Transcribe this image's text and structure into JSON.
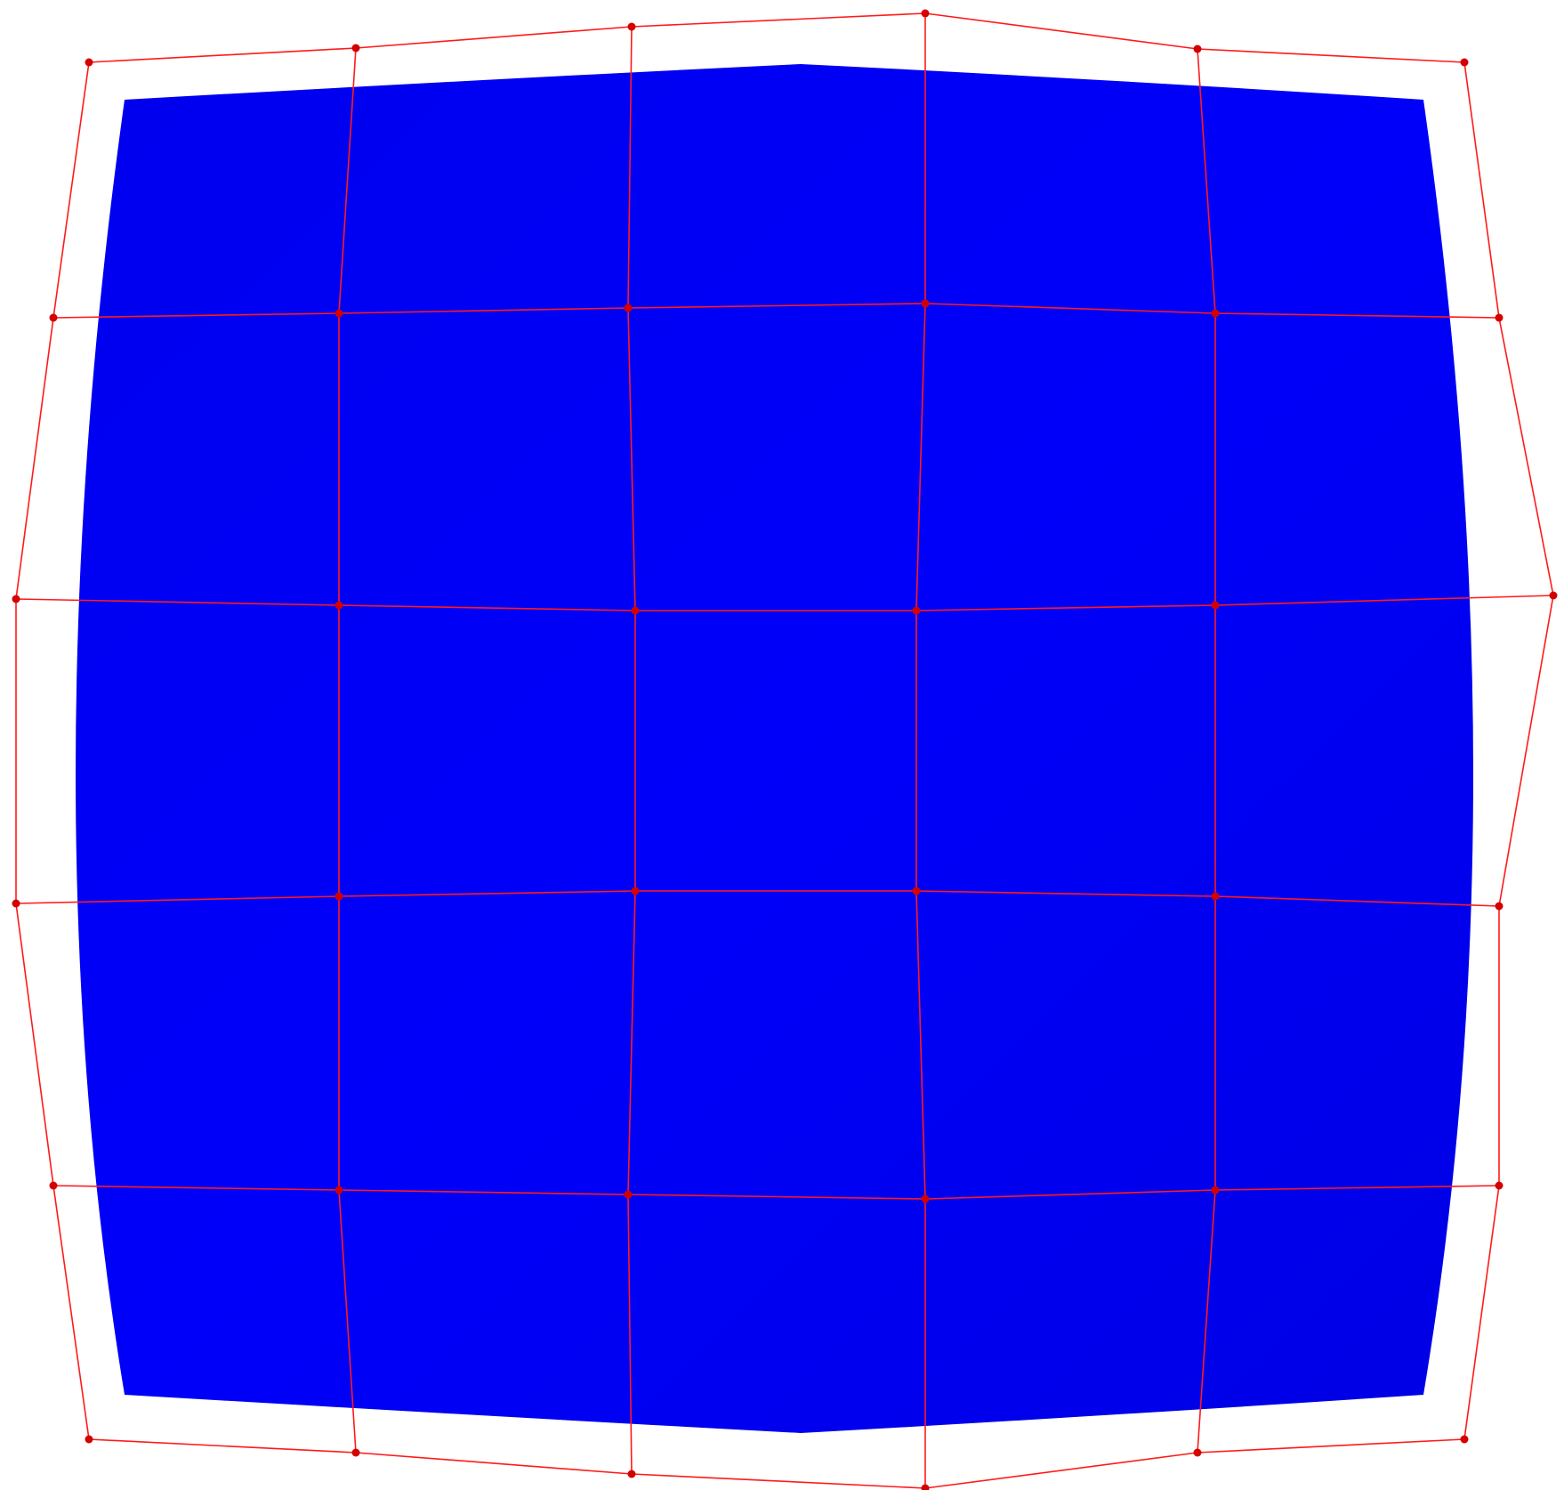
{
  "colors": {
    "background": "#ffffff",
    "surface_fill": "#0000f4",
    "control_net": "#ff1a1a",
    "control_point": "#d40000"
  },
  "grid": {
    "rows": 6,
    "cols": 6
  }
}
